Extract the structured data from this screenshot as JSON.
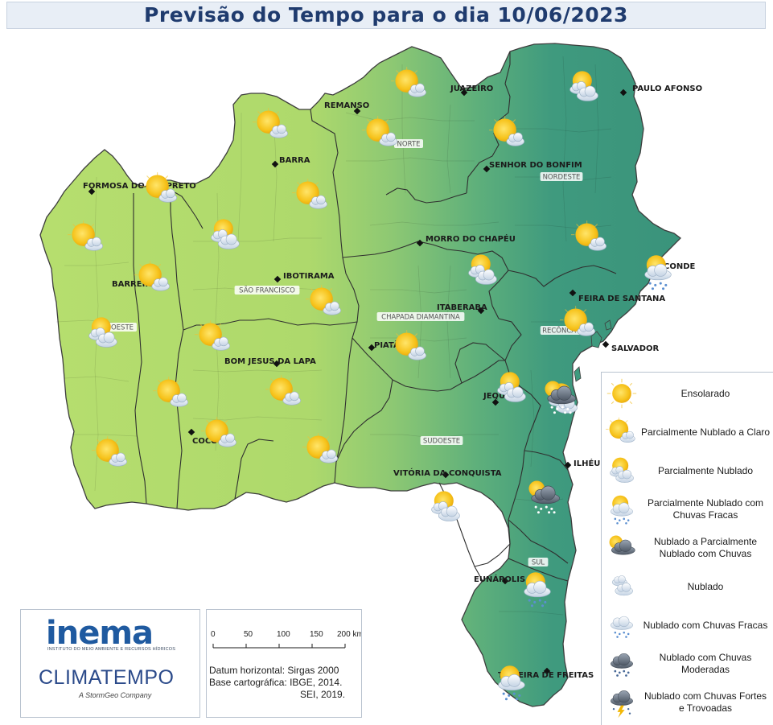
{
  "title": "Previsão do Tempo para o dia 10/06/2023",
  "colors": {
    "west": "#b3dc6c",
    "east": "#3e9a7e",
    "border": "#3d3d3d",
    "title": "#1f3b6e",
    "sun": "#f6c21a"
  },
  "cities": [
    {
      "name": "JUAZEIRO"
    },
    {
      "name": "PAULO AFONSO"
    },
    {
      "name": "REMANSO"
    },
    {
      "name": "BARRA"
    },
    {
      "name": "SENHOR DO BONFIM"
    },
    {
      "name": "FORMOSA DO RIO PRETO"
    },
    {
      "name": "MORRO DO CHAPÉU"
    },
    {
      "name": "IBOTIRAMA"
    },
    {
      "name": "CONDE"
    },
    {
      "name": "BARREIRAS"
    },
    {
      "name": "FEIRA DE SANTANA"
    },
    {
      "name": "ITABERABA"
    },
    {
      "name": "SALVADOR"
    },
    {
      "name": "PIATÃ"
    },
    {
      "name": "BOM JESUS DA LAPA"
    },
    {
      "name": "JEQUIÉ"
    },
    {
      "name": "COCOS"
    },
    {
      "name": "VITÓRIA DA CONQUISTA"
    },
    {
      "name": "ILHÉUS"
    },
    {
      "name": "EUNÁPOLIS"
    },
    {
      "name": "TEIXEIRA DE FREITAS"
    }
  ],
  "regions": [
    {
      "name": "NORTE"
    },
    {
      "name": "NORDESTE"
    },
    {
      "name": "SÃO FRANCISCO"
    },
    {
      "name": "CHAPADA DIAMANTINA"
    },
    {
      "name": "OESTE"
    },
    {
      "name": "RECÔNCAVO"
    },
    {
      "name": "SUDOESTE"
    },
    {
      "name": "SUL"
    }
  ],
  "forecast_icons": [
    {
      "type": "partly-cloudy-clear"
    },
    {
      "type": "partly-cloudy"
    },
    {
      "type": "partly-cloudy-clear"
    },
    {
      "type": "partly-cloudy-clear"
    },
    {
      "type": "partly-cloudy-clear"
    },
    {
      "type": "partly-cloudy-clear"
    },
    {
      "type": "partly-cloudy-clear"
    },
    {
      "type": "partly-cloudy-clear"
    },
    {
      "type": "partly-cloudy"
    },
    {
      "type": "partly-cloudy-clear"
    },
    {
      "type": "partly-cloudy"
    },
    {
      "type": "partly-cloudy-light-rain"
    },
    {
      "type": "partly-cloudy-clear"
    },
    {
      "type": "partly-cloudy-clear"
    },
    {
      "type": "partly-cloudy-clear"
    },
    {
      "type": "partly-cloudy"
    },
    {
      "type": "partly-cloudy-clear"
    },
    {
      "type": "partly-cloudy-clear"
    },
    {
      "type": "partly-cloudy-clear"
    },
    {
      "type": "partly-cloudy-clear"
    },
    {
      "type": "partly-cloudy"
    },
    {
      "type": "partly-cloudy"
    },
    {
      "type": "partly-cloudy-clear"
    },
    {
      "type": "mostly-cloudy-rain"
    },
    {
      "type": "partly-cloudy-clear"
    },
    {
      "type": "partly-cloudy-clear"
    },
    {
      "type": "partly-cloudy"
    },
    {
      "type": "mostly-cloudy-rain"
    },
    {
      "type": "partly-cloudy-light-rain"
    },
    {
      "type": "partly-cloudy-light-rain"
    }
  ],
  "legend": {
    "items": [
      {
        "icon": "sunny",
        "label": "Ensolarado"
      },
      {
        "icon": "partly-cloudy-clear",
        "label": "Parcialmente Nublado a Claro"
      },
      {
        "icon": "partly-cloudy",
        "label": "Parcialmente Nublado"
      },
      {
        "icon": "partly-cloudy-light-rain",
        "label": "Parcialmente Nublado com Chuvas Fracas"
      },
      {
        "icon": "mostly-cloudy-rain",
        "label": "Nublado a Parcialmente Nublado com Chuvas"
      },
      {
        "icon": "cloudy",
        "label": "Nublado"
      },
      {
        "icon": "cloudy-light-rain",
        "label": "Nublado com Chuvas Fracas"
      },
      {
        "icon": "cloudy-moderate-rain",
        "label": "Nublado com Chuvas Moderadas"
      },
      {
        "icon": "cloudy-storm",
        "label": "Nublado com Chuvas Fortes e Trovoadas"
      }
    ]
  },
  "logos": {
    "inema": "inema",
    "inema_sub": "INSTITUTO DO MEIO AMBIENTE E RECURSOS HÍDRICOS",
    "climatempo": "CLIMATEMPO",
    "stormgeo": "A StormGeo Company"
  },
  "scale": {
    "ticks": [
      "0",
      "50",
      "100",
      "150",
      "200 km"
    ],
    "datum_label": "Datum horizontal:",
    "datum_value": "Sirgas 2000",
    "base_label": "Base cartográfica:",
    "base_value_1": "IBGE, 2014.",
    "base_value_2": "SEI, 2019."
  }
}
